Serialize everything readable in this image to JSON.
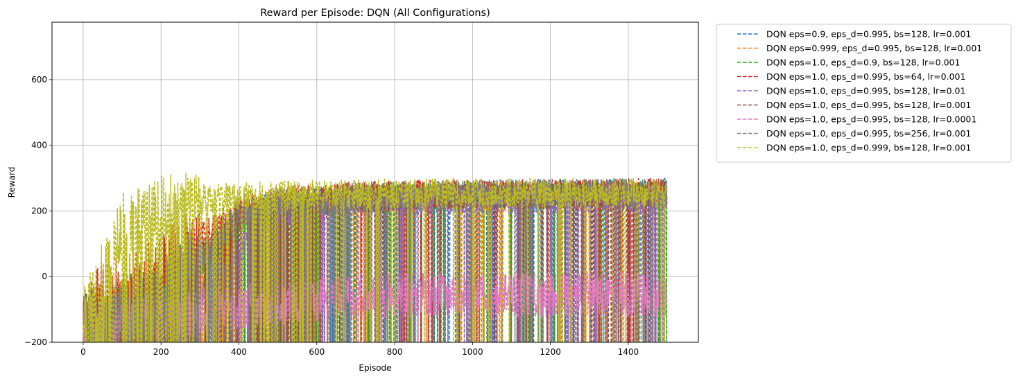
{
  "chart_data": {
    "type": "line",
    "title": "Reward per Episode: DQN (All Configurations)",
    "xlabel": "Episode",
    "ylabel": "Reward",
    "xlim": [
      -80,
      1580
    ],
    "ylim": [
      -200,
      775
    ],
    "xticks": [
      0,
      200,
      400,
      600,
      800,
      1000,
      1200,
      1400
    ],
    "yticks": [
      -200,
      0,
      200,
      400,
      600
    ],
    "grid": true,
    "legend_position": "outside-upper-right",
    "line_style": "dashed",
    "episodes": 1500,
    "series": [
      {
        "name": "DQN eps=0.9, eps_d=0.995, bs=128, lr=0.001",
        "color": "#1f77b4",
        "profile": [
          [
            0,
            -150
          ],
          [
            100,
            -120
          ],
          [
            200,
            -90
          ],
          [
            300,
            30
          ],
          [
            400,
            180
          ],
          [
            500,
            220
          ],
          [
            700,
            240
          ],
          [
            1000,
            250
          ],
          [
            1500,
            255
          ]
        ]
      },
      {
        "name": "DQN eps=0.999, eps_d=0.995, bs=128, lr=0.001",
        "color": "#ff7f0e",
        "profile": [
          [
            0,
            -150
          ],
          [
            100,
            -120
          ],
          [
            200,
            -80
          ],
          [
            300,
            20
          ],
          [
            400,
            170
          ],
          [
            500,
            210
          ],
          [
            700,
            235
          ],
          [
            1000,
            245
          ],
          [
            1500,
            250
          ]
        ]
      },
      {
        "name": "DQN eps=1.0, eps_d=0.9, bs=128, lr=0.001",
        "color": "#2ca02c",
        "profile": [
          [
            0,
            -150
          ],
          [
            100,
            -110
          ],
          [
            200,
            -60
          ],
          [
            300,
            40
          ],
          [
            400,
            170
          ],
          [
            500,
            215
          ],
          [
            700,
            235
          ],
          [
            1000,
            245
          ],
          [
            1500,
            250
          ]
        ]
      },
      {
        "name": "DQN eps=1.0, eps_d=0.995, bs=64, lr=0.001",
        "color": "#d62728",
        "profile": [
          [
            0,
            -130
          ],
          [
            50,
            -60
          ],
          [
            100,
            -50
          ],
          [
            200,
            20
          ],
          [
            300,
            120
          ],
          [
            400,
            200
          ],
          [
            500,
            230
          ],
          [
            700,
            245
          ],
          [
            1000,
            250
          ],
          [
            1500,
            255
          ]
        ]
      },
      {
        "name": "DQN eps=1.0, eps_d=0.995, bs=128, lr=0.01",
        "color": "#9467bd",
        "profile": [
          [
            0,
            -160
          ],
          [
            100,
            -150
          ],
          [
            200,
            -130
          ],
          [
            300,
            -60
          ],
          [
            400,
            80
          ],
          [
            500,
            190
          ],
          [
            700,
            225
          ],
          [
            1000,
            235
          ],
          [
            1500,
            240
          ]
        ]
      },
      {
        "name": "DQN eps=1.0, eps_d=0.995, bs=128, lr=0.001",
        "color": "#8c564b",
        "profile": [
          [
            0,
            -150
          ],
          [
            100,
            -120
          ],
          [
            200,
            -60
          ],
          [
            300,
            60
          ],
          [
            400,
            180
          ],
          [
            500,
            220
          ],
          [
            700,
            240
          ],
          [
            1000,
            250
          ],
          [
            1500,
            255
          ]
        ]
      },
      {
        "name": "DQN eps=1.0, eps_d=0.995, bs=128, lr=0.0001",
        "color": "#e377c2",
        "profile": [
          [
            0,
            -150
          ],
          [
            100,
            -140
          ],
          [
            200,
            -130
          ],
          [
            300,
            -110
          ],
          [
            400,
            -90
          ],
          [
            600,
            -70
          ],
          [
            800,
            -60
          ],
          [
            1000,
            -60
          ],
          [
            1200,
            -55
          ],
          [
            1500,
            -55
          ]
        ]
      },
      {
        "name": "DQN eps=1.0, eps_d=0.995, bs=256, lr=0.001",
        "color": "#7f7f7f",
        "profile": [
          [
            0,
            -150
          ],
          [
            100,
            -110
          ],
          [
            200,
            -60
          ],
          [
            300,
            60
          ],
          [
            400,
            190
          ],
          [
            500,
            225
          ],
          [
            700,
            240
          ],
          [
            1000,
            250
          ],
          [
            1500,
            255
          ]
        ]
      },
      {
        "name": "DQN eps=1.0, eps_d=0.999, bs=128, lr=0.001",
        "color": "#bcbd22",
        "profile": [
          [
            0,
            -140
          ],
          [
            60,
            30
          ],
          [
            100,
            150
          ],
          [
            200,
            210
          ],
          [
            300,
            235
          ],
          [
            400,
            245
          ],
          [
            600,
            250
          ],
          [
            1000,
            255
          ],
          [
            1500,
            255
          ]
        ]
      }
    ]
  }
}
